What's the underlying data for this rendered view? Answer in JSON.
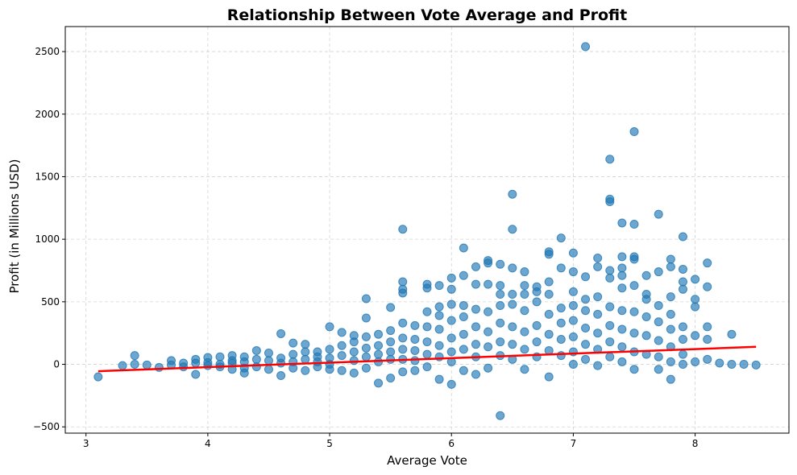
{
  "chart_data": {
    "type": "scatter",
    "title": "Relationship Between Vote Average and Profit",
    "xlabel": "Average Vote",
    "ylabel": "Profit (in Millions USD)",
    "xlim": [
      2.83,
      8.77
    ],
    "ylim": [
      -550,
      2700
    ],
    "xticks": [
      3,
      4,
      5,
      6,
      7,
      8
    ],
    "yticks": [
      -500,
      0,
      500,
      1000,
      1500,
      2000,
      2500
    ],
    "grid": true,
    "point_color": "#1f77b4",
    "trend_color": "#ff0000",
    "trendline": {
      "x": [
        3.1,
        8.5
      ],
      "y": [
        -55,
        140
      ]
    },
    "points": [
      [
        3.1,
        -100
      ],
      [
        3.3,
        -10
      ],
      [
        3.4,
        70
      ],
      [
        3.4,
        0
      ],
      [
        3.5,
        -5
      ],
      [
        3.6,
        -25
      ],
      [
        3.7,
        30
      ],
      [
        3.7,
        -5
      ],
      [
        3.8,
        10
      ],
      [
        3.8,
        -20
      ],
      [
        3.9,
        40
      ],
      [
        3.9,
        -80
      ],
      [
        3.9,
        10
      ],
      [
        4.0,
        55
      ],
      [
        4.0,
        -10
      ],
      [
        4.0,
        15
      ],
      [
        4.1,
        60
      ],
      [
        4.1,
        0
      ],
      [
        4.1,
        -20
      ],
      [
        4.2,
        70
      ],
      [
        4.2,
        30
      ],
      [
        4.2,
        -40
      ],
      [
        4.2,
        10
      ],
      [
        4.3,
        60
      ],
      [
        4.3,
        20
      ],
      [
        4.3,
        -30
      ],
      [
        4.3,
        -70
      ],
      [
        4.4,
        110
      ],
      [
        4.4,
        40
      ],
      [
        4.4,
        -20
      ],
      [
        4.5,
        90
      ],
      [
        4.5,
        30
      ],
      [
        4.5,
        -40
      ],
      [
        4.6,
        245
      ],
      [
        4.6,
        50
      ],
      [
        4.6,
        -90
      ],
      [
        4.6,
        10
      ],
      [
        4.7,
        170
      ],
      [
        4.7,
        80
      ],
      [
        4.7,
        -30
      ],
      [
        4.7,
        20
      ],
      [
        4.8,
        160
      ],
      [
        4.8,
        100
      ],
      [
        4.8,
        40
      ],
      [
        4.8,
        -50
      ],
      [
        4.9,
        100
      ],
      [
        4.9,
        60
      ],
      [
        4.9,
        -20
      ],
      [
        4.9,
        20
      ],
      [
        5.0,
        300
      ],
      [
        5.0,
        120
      ],
      [
        5.0,
        50
      ],
      [
        5.0,
        -40
      ],
      [
        5.0,
        0
      ],
      [
        5.1,
        255
      ],
      [
        5.1,
        150
      ],
      [
        5.1,
        70
      ],
      [
        5.1,
        -50
      ],
      [
        5.2,
        230
      ],
      [
        5.2,
        180
      ],
      [
        5.2,
        100
      ],
      [
        5.2,
        30
      ],
      [
        5.2,
        -70
      ],
      [
        5.3,
        525
      ],
      [
        5.3,
        370
      ],
      [
        5.3,
        220
      ],
      [
        5.3,
        130
      ],
      [
        5.3,
        60
      ],
      [
        5.3,
        -30
      ],
      [
        5.4,
        240
      ],
      [
        5.4,
        150
      ],
      [
        5.4,
        80
      ],
      [
        5.4,
        20
      ],
      [
        5.4,
        -150
      ],
      [
        5.5,
        455
      ],
      [
        5.5,
        270
      ],
      [
        5.5,
        180
      ],
      [
        5.5,
        100
      ],
      [
        5.5,
        40
      ],
      [
        5.5,
        -110
      ],
      [
        5.6,
        1080
      ],
      [
        5.6,
        660
      ],
      [
        5.6,
        600
      ],
      [
        5.6,
        570
      ],
      [
        5.6,
        330
      ],
      [
        5.6,
        210
      ],
      [
        5.6,
        120
      ],
      [
        5.6,
        40
      ],
      [
        5.6,
        -60
      ],
      [
        5.7,
        310
      ],
      [
        5.7,
        200
      ],
      [
        5.7,
        110
      ],
      [
        5.7,
        30
      ],
      [
        5.7,
        -50
      ],
      [
        5.8,
        640
      ],
      [
        5.8,
        610
      ],
      [
        5.8,
        420
      ],
      [
        5.8,
        300
      ],
      [
        5.8,
        180
      ],
      [
        5.8,
        80
      ],
      [
        5.8,
        -20
      ],
      [
        5.9,
        630
      ],
      [
        5.9,
        460
      ],
      [
        5.9,
        390
      ],
      [
        5.9,
        280
      ],
      [
        5.9,
        150
      ],
      [
        5.9,
        60
      ],
      [
        5.9,
        -120
      ],
      [
        6.0,
        690
      ],
      [
        6.0,
        600
      ],
      [
        6.0,
        480
      ],
      [
        6.0,
        350
      ],
      [
        6.0,
        210
      ],
      [
        6.0,
        100
      ],
      [
        6.0,
        20
      ],
      [
        6.0,
        -160
      ],
      [
        6.1,
        930
      ],
      [
        6.1,
        710
      ],
      [
        6.1,
        470
      ],
      [
        6.1,
        380
      ],
      [
        6.1,
        240
      ],
      [
        6.1,
        120
      ],
      [
        6.1,
        -50
      ],
      [
        6.2,
        780
      ],
      [
        6.2,
        640
      ],
      [
        6.2,
        440
      ],
      [
        6.2,
        300
      ],
      [
        6.2,
        160
      ],
      [
        6.2,
        60
      ],
      [
        6.2,
        -80
      ],
      [
        6.3,
        830
      ],
      [
        6.3,
        810
      ],
      [
        6.3,
        640
      ],
      [
        6.3,
        420
      ],
      [
        6.3,
        260
      ],
      [
        6.3,
        140
      ],
      [
        6.3,
        -30
      ],
      [
        6.4,
        800
      ],
      [
        6.4,
        630
      ],
      [
        6.4,
        560
      ],
      [
        6.4,
        470
      ],
      [
        6.4,
        330
      ],
      [
        6.4,
        180
      ],
      [
        6.4,
        70
      ],
      [
        6.4,
        -410
      ],
      [
        6.5,
        1360
      ],
      [
        6.5,
        1080
      ],
      [
        6.5,
        770
      ],
      [
        6.5,
        560
      ],
      [
        6.5,
        480
      ],
      [
        6.5,
        300
      ],
      [
        6.5,
        160
      ],
      [
        6.5,
        40
      ],
      [
        6.6,
        740
      ],
      [
        6.6,
        630
      ],
      [
        6.6,
        560
      ],
      [
        6.6,
        430
      ],
      [
        6.6,
        260
      ],
      [
        6.6,
        120
      ],
      [
        6.6,
        -40
      ],
      [
        6.7,
        620
      ],
      [
        6.7,
        580
      ],
      [
        6.7,
        500
      ],
      [
        6.7,
        310
      ],
      [
        6.7,
        180
      ],
      [
        6.7,
        60
      ],
      [
        6.8,
        900
      ],
      [
        6.8,
        880
      ],
      [
        6.8,
        660
      ],
      [
        6.8,
        560
      ],
      [
        6.8,
        400
      ],
      [
        6.8,
        240
      ],
      [
        6.8,
        110
      ],
      [
        6.8,
        -100
      ],
      [
        6.9,
        1010
      ],
      [
        6.9,
        770
      ],
      [
        6.9,
        450
      ],
      [
        6.9,
        330
      ],
      [
        6.9,
        200
      ],
      [
        6.9,
        70
      ],
      [
        7.0,
        890
      ],
      [
        7.0,
        740
      ],
      [
        7.0,
        580
      ],
      [
        7.0,
        470
      ],
      [
        7.0,
        350
      ],
      [
        7.0,
        220
      ],
      [
        7.0,
        100
      ],
      [
        7.0,
        0
      ],
      [
        7.1,
        2540
      ],
      [
        7.1,
        700
      ],
      [
        7.1,
        520
      ],
      [
        7.1,
        430
      ],
      [
        7.1,
        290
      ],
      [
        7.1,
        160
      ],
      [
        7.1,
        40
      ],
      [
        7.2,
        850
      ],
      [
        7.2,
        780
      ],
      [
        7.2,
        540
      ],
      [
        7.2,
        400
      ],
      [
        7.2,
        250
      ],
      [
        7.2,
        120
      ],
      [
        7.2,
        -10
      ],
      [
        7.3,
        1640
      ],
      [
        7.3,
        1320
      ],
      [
        7.3,
        1300
      ],
      [
        7.3,
        750
      ],
      [
        7.3,
        690
      ],
      [
        7.3,
        460
      ],
      [
        7.3,
        310
      ],
      [
        7.3,
        180
      ],
      [
        7.3,
        60
      ],
      [
        7.4,
        1130
      ],
      [
        7.4,
        860
      ],
      [
        7.4,
        770
      ],
      [
        7.4,
        710
      ],
      [
        7.4,
        610
      ],
      [
        7.4,
        430
      ],
      [
        7.4,
        280
      ],
      [
        7.4,
        140
      ],
      [
        7.4,
        20
      ],
      [
        7.5,
        1860
      ],
      [
        7.5,
        1120
      ],
      [
        7.5,
        860
      ],
      [
        7.5,
        840
      ],
      [
        7.5,
        630
      ],
      [
        7.5,
        420
      ],
      [
        7.5,
        250
      ],
      [
        7.5,
        100
      ],
      [
        7.5,
        -40
      ],
      [
        7.6,
        710
      ],
      [
        7.6,
        560
      ],
      [
        7.6,
        520
      ],
      [
        7.6,
        380
      ],
      [
        7.6,
        230
      ],
      [
        7.6,
        80
      ],
      [
        7.7,
        1200
      ],
      [
        7.7,
        740
      ],
      [
        7.7,
        470
      ],
      [
        7.7,
        340
      ],
      [
        7.7,
        190
      ],
      [
        7.7,
        60
      ],
      [
        7.7,
        -40
      ],
      [
        7.8,
        840
      ],
      [
        7.8,
        780
      ],
      [
        7.8,
        540
      ],
      [
        7.8,
        400
      ],
      [
        7.8,
        280
      ],
      [
        7.8,
        140
      ],
      [
        7.8,
        20
      ],
      [
        7.8,
        -120
      ],
      [
        7.9,
        1020
      ],
      [
        7.9,
        760
      ],
      [
        7.9,
        660
      ],
      [
        7.9,
        600
      ],
      [
        7.9,
        300
      ],
      [
        7.9,
        200
      ],
      [
        7.9,
        80
      ],
      [
        7.9,
        0
      ],
      [
        8.0,
        680
      ],
      [
        8.0,
        520
      ],
      [
        8.0,
        460
      ],
      [
        8.0,
        230
      ],
      [
        8.0,
        20
      ],
      [
        8.1,
        810
      ],
      [
        8.1,
        620
      ],
      [
        8.1,
        300
      ],
      [
        8.1,
        200
      ],
      [
        8.1,
        40
      ],
      [
        8.2,
        10
      ],
      [
        8.3,
        240
      ],
      [
        8.3,
        0
      ],
      [
        8.4,
        0
      ],
      [
        8.5,
        -5
      ]
    ]
  }
}
